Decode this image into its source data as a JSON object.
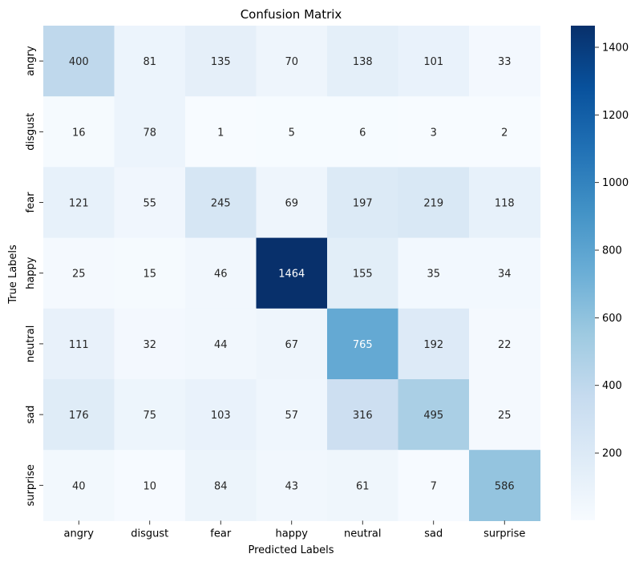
{
  "chart_data": {
    "type": "heatmap",
    "title": "Confusion Matrix",
    "xlabel": "Predicted Labels",
    "ylabel": "True Labels",
    "x_categories": [
      "angry",
      "disgust",
      "fear",
      "happy",
      "neutral",
      "sad",
      "surprise"
    ],
    "y_categories": [
      "angry",
      "disgust",
      "fear",
      "happy",
      "neutral",
      "sad",
      "surprise"
    ],
    "values": [
      [
        400,
        81,
        135,
        70,
        138,
        101,
        33
      ],
      [
        16,
        78,
        1,
        5,
        6,
        3,
        2
      ],
      [
        121,
        55,
        245,
        69,
        197,
        219,
        118
      ],
      [
        25,
        15,
        46,
        1464,
        155,
        35,
        34
      ],
      [
        111,
        32,
        44,
        67,
        765,
        192,
        22
      ],
      [
        176,
        75,
        103,
        57,
        316,
        495,
        25
      ],
      [
        40,
        10,
        84,
        43,
        61,
        7,
        586
      ]
    ],
    "colormap": "Blues",
    "colorbar": {
      "min": 1,
      "max": 1464,
      "ticks": [
        200,
        400,
        600,
        800,
        1000,
        1200,
        1400
      ]
    }
  }
}
